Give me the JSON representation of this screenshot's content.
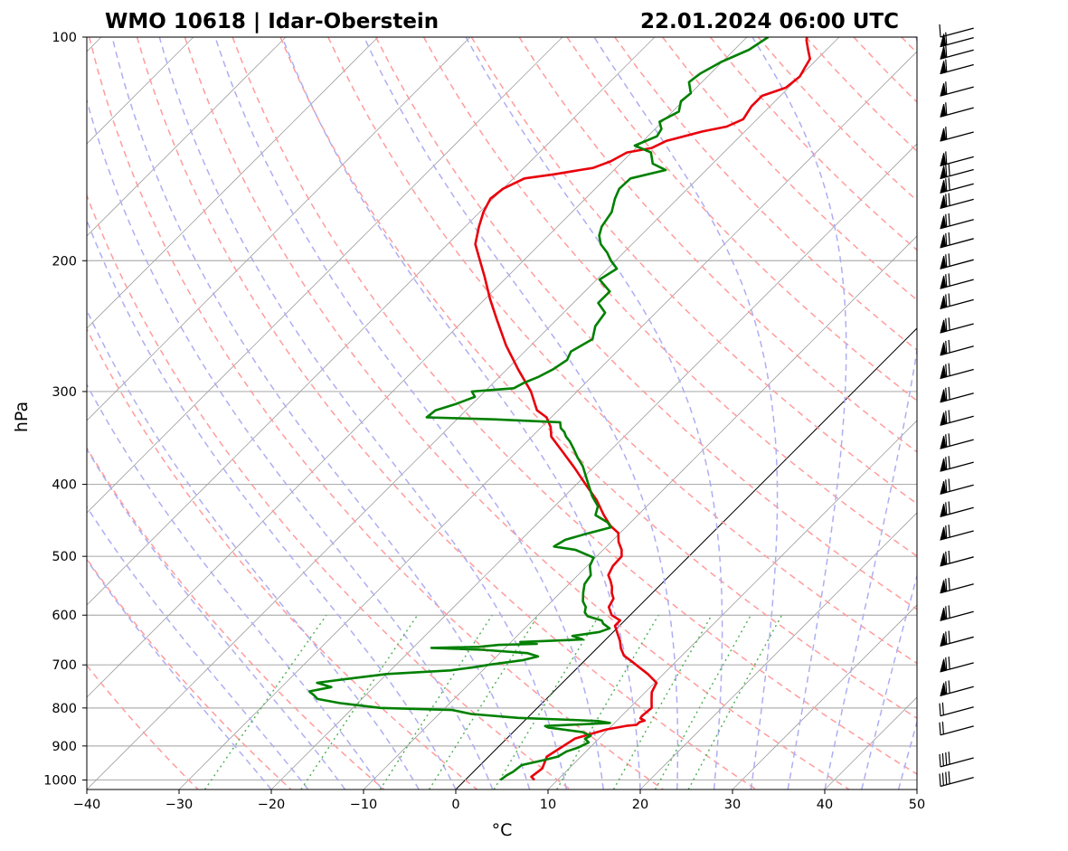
{
  "title_left": "WMO 10618 | Idar-Oberstein",
  "title_right": "22.01.2024 06:00 UTC",
  "chart_data": {
    "type": "line",
    "xlabel": "°C",
    "ylabel": "hPa",
    "xlim": [
      -40,
      50
    ],
    "ylim": [
      1030,
      100
    ],
    "yscale": "log",
    "x_ticks": [
      "−40",
      "−30",
      "−20",
      "−10",
      "0",
      "10",
      "20",
      "30",
      "40",
      "50"
    ],
    "x_tick_values": [
      -40,
      -30,
      -20,
      -10,
      0,
      10,
      20,
      30,
      40,
      50
    ],
    "y_ticks": [
      "100",
      "200",
      "300",
      "400",
      "500",
      "600",
      "700",
      "800",
      "900",
      "1000"
    ],
    "y_tick_values": [
      100,
      200,
      300,
      400,
      500,
      600,
      700,
      800,
      900,
      1000
    ],
    "grid": true,
    "background_lines": [
      "dry adiabats (red dashed)",
      "moist adiabats (blue dashed)",
      "mixing ratio lines (green dotted)",
      "skewed isotherms (gray)",
      "0 °C isotherm (black)"
    ],
    "series": [
      {
        "role": "temperature",
        "color": "#e8000b",
        "points": [
          [
            1000,
            7.5
          ],
          [
            990,
            6.8
          ],
          [
            965,
            7.1
          ],
          [
            930,
            6.3
          ],
          [
            880,
            7.4
          ],
          [
            855,
            9.8
          ],
          [
            845,
            11.7
          ],
          [
            843,
            12.6
          ],
          [
            836,
            12.6
          ],
          [
            832,
            13.0
          ],
          [
            826,
            12.3
          ],
          [
            820,
            12.2
          ],
          [
            800,
            12.4
          ],
          [
            780,
            11.5
          ],
          [
            762,
            10.7
          ],
          [
            740,
            10.2
          ],
          [
            720,
            8.3
          ],
          [
            705,
            6.6
          ],
          [
            695,
            5.5
          ],
          [
            680,
            3.7
          ],
          [
            665,
            2.6
          ],
          [
            650,
            1.7
          ],
          [
            620,
            -0.5
          ],
          [
            610,
            -0.5
          ],
          [
            600,
            -2.0
          ],
          [
            585,
            -3.2
          ],
          [
            570,
            -3.6
          ],
          [
            560,
            -4.4
          ],
          [
            550,
            -5.0
          ],
          [
            540,
            -5.8
          ],
          [
            530,
            -6.7
          ],
          [
            515,
            -7.2
          ],
          [
            500,
            -7.3
          ],
          [
            490,
            -8.0
          ],
          [
            478,
            -9.2
          ],
          [
            465,
            -10.2
          ],
          [
            455,
            -11.8
          ],
          [
            440,
            -13.7
          ],
          [
            420,
            -16.1
          ],
          [
            400,
            -19.0
          ],
          [
            380,
            -22.0
          ],
          [
            360,
            -25.3
          ],
          [
            345,
            -27.9
          ],
          [
            335,
            -29.0
          ],
          [
            325,
            -30.5
          ],
          [
            318,
            -32.3
          ],
          [
            300,
            -35.0
          ],
          [
            280,
            -38.8
          ],
          [
            260,
            -42.7
          ],
          [
            240,
            -46.5
          ],
          [
            225,
            -49.5
          ],
          [
            210,
            -52.5
          ],
          [
            200,
            -54.7
          ],
          [
            190,
            -57.0
          ],
          [
            180,
            -58.5
          ],
          [
            172,
            -59.6
          ],
          [
            165,
            -60.3
          ],
          [
            160,
            -60.0
          ],
          [
            155,
            -58.8
          ],
          [
            153,
            -56.0
          ],
          [
            151,
            -53.7
          ],
          [
            150,
            -52.5
          ],
          [
            147,
            -51.3
          ],
          [
            143,
            -50.5
          ],
          [
            141,
            -48.3
          ],
          [
            138,
            -47.5
          ],
          [
            134,
            -44.6
          ],
          [
            132,
            -42.5
          ],
          [
            129,
            -41.5
          ],
          [
            124,
            -42.0
          ],
          [
            120,
            -42.0
          ],
          [
            117,
            -40.3
          ],
          [
            113,
            -40.0
          ],
          [
            110,
            -40.4
          ],
          [
            107,
            -40.8
          ],
          [
            104,
            -42.0
          ],
          [
            101,
            -43.2
          ],
          [
            100,
            -43.5
          ]
        ]
      },
      {
        "role": "dewpoint",
        "color": "#008000",
        "points": [
          [
            1000,
            3.8
          ],
          [
            985,
            4.0
          ],
          [
            975,
            4.3
          ],
          [
            955,
            4.5
          ],
          [
            940,
            6.4
          ],
          [
            930,
            7.5
          ],
          [
            915,
            7.9
          ],
          [
            905,
            8.7
          ],
          [
            890,
            9.3
          ],
          [
            880,
            8.5
          ],
          [
            872,
            8.8
          ],
          [
            862,
            7.5
          ],
          [
            850,
            3.3
          ],
          [
            846,
            2.8
          ],
          [
            838,
            9.5
          ],
          [
            833,
            8.0
          ],
          [
            830,
            5.0
          ],
          [
            825,
            -1.0
          ],
          [
            815,
            -6.5
          ],
          [
            805,
            -9.0
          ],
          [
            800,
            -17.0
          ],
          [
            788,
            -21.9
          ],
          [
            778,
            -24.8
          ],
          [
            770,
            -25.5
          ],
          [
            760,
            -26.5
          ],
          [
            750,
            -24.6
          ],
          [
            740,
            -26.6
          ],
          [
            730,
            -23.4
          ],
          [
            720,
            -20.0
          ],
          [
            712,
            -13.5
          ],
          [
            705,
            -11.2
          ],
          [
            700,
            -10.0
          ],
          [
            690,
            -6.8
          ],
          [
            682,
            -5.5
          ],
          [
            675,
            -7.0
          ],
          [
            668,
            -12.3
          ],
          [
            664,
            -18.0
          ],
          [
            662,
            -13.0
          ],
          [
            658,
            -11.0
          ],
          [
            656,
            -7.0
          ],
          [
            652,
            -9.0
          ],
          [
            647,
            -2.5
          ],
          [
            640,
            -4.0
          ],
          [
            632,
            -1.5
          ],
          [
            625,
            -0.8
          ],
          [
            616,
            -2.0
          ],
          [
            610,
            -2.5
          ],
          [
            602,
            -4.5
          ],
          [
            595,
            -5.2
          ],
          [
            585,
            -5.7
          ],
          [
            575,
            -6.6
          ],
          [
            560,
            -7.5
          ],
          [
            545,
            -8.3
          ],
          [
            530,
            -8.6
          ],
          [
            515,
            -9.7
          ],
          [
            502,
            -10.2
          ],
          [
            490,
            -13.0
          ],
          [
            485,
            -15.7
          ],
          [
            475,
            -15.2
          ],
          [
            467,
            -13.7
          ],
          [
            457,
            -11.6
          ],
          [
            450,
            -12.5
          ],
          [
            440,
            -14.6
          ],
          [
            428,
            -15.3
          ],
          [
            415,
            -17.0
          ],
          [
            400,
            -18.7
          ],
          [
            388,
            -20.1
          ],
          [
            378,
            -21.3
          ],
          [
            368,
            -22.8
          ],
          [
            358,
            -24.2
          ],
          [
            350,
            -25.4
          ],
          [
            345,
            -26.3
          ],
          [
            340,
            -27.0
          ],
          [
            336,
            -27.8
          ],
          [
            330,
            -28.5
          ],
          [
            327,
            -36.0
          ],
          [
            325,
            -43.5
          ],
          [
            318,
            -43.3
          ],
          [
            312,
            -41.8
          ],
          [
            305,
            -40.5
          ],
          [
            300,
            -41.4
          ],
          [
            297,
            -37.2
          ],
          [
            292,
            -36.7
          ],
          [
            287,
            -35.8
          ],
          [
            280,
            -35.0
          ],
          [
            272,
            -34.5
          ],
          [
            265,
            -35.0
          ],
          [
            255,
            -34.0
          ],
          [
            245,
            -35.1
          ],
          [
            235,
            -35.5
          ],
          [
            228,
            -37.3
          ],
          [
            220,
            -37.3
          ],
          [
            212,
            -39.7
          ],
          [
            205,
            -39.0
          ],
          [
            200,
            -40.5
          ],
          [
            195,
            -41.8
          ],
          [
            190,
            -43.4
          ],
          [
            185,
            -44.5
          ],
          [
            180,
            -45.2
          ],
          [
            172,
            -45.7
          ],
          [
            165,
            -46.8
          ],
          [
            160,
            -47.4
          ],
          [
            155,
            -47.3
          ],
          [
            151,
            -44.4
          ],
          [
            148,
            -46.5
          ],
          [
            143,
            -47.9
          ],
          [
            140,
            -50.4
          ],
          [
            136,
            -49.0
          ],
          [
            133,
            -49.3
          ],
          [
            130,
            -50.3
          ],
          [
            126,
            -49.3
          ],
          [
            122,
            -50.2
          ],
          [
            119,
            -50.0
          ],
          [
            115,
            -51.4
          ],
          [
            112,
            -51.1
          ],
          [
            108,
            -50.1
          ],
          [
            104,
            -48.4
          ],
          [
            100,
            -47.7
          ]
        ]
      }
    ],
    "wind_barbs_levels_hpa": [
      100,
      103,
      107,
      112,
      120,
      128,
      138,
      149,
      155,
      162,
      170,
      181,
      192,
      205,
      218,
      232,
      250,
      268,
      288,
      310,
      333,
      358,
      384,
      412,
      442,
      475,
      515,
      560,
      610,
      660,
      715,
      770,
      820,
      870,
      960,
      1020
    ]
  }
}
